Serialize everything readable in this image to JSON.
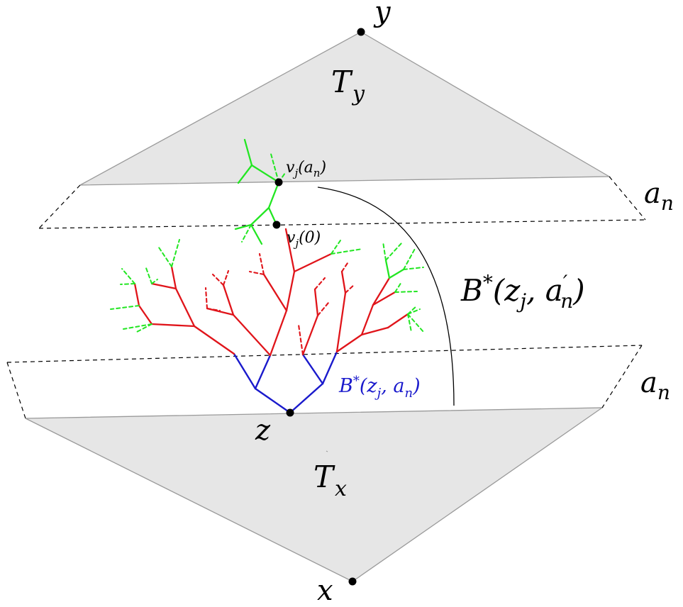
{
  "labels": {
    "y": "y",
    "x": "x",
    "z": "z",
    "Ty_main": "T",
    "Ty_sub": "y",
    "Tx_main": "T",
    "Tx_sub": "x",
    "an_top_main": "a",
    "an_top_sub": "n",
    "an_bottom_main": "a",
    "an_bottom_sub": "n",
    "vj_an": {
      "v": "v",
      "j": "j",
      "arg": "(a",
      "n": "n",
      "close": ")"
    },
    "vj_0": {
      "v": "v",
      "j": "j",
      "arg": "(0)"
    },
    "B_prime": {
      "B": "B",
      "star": "*",
      "open": "(z",
      "j": "j",
      "comma": ", a",
      "prime": "′",
      "n": "n",
      "close": ")"
    },
    "B_blue": {
      "B": "B",
      "star": "*",
      "open": "(z",
      "j": "j",
      "comma": ", a",
      "n": "n",
      "close": ")"
    }
  },
  "colors": {
    "fill": "#e6e6e6",
    "outline": "#9a9a9a",
    "tree_red": "#e0141a",
    "tree_green": "#22e622",
    "tree_blue": "#1a1acc",
    "dashed": "#000000"
  }
}
